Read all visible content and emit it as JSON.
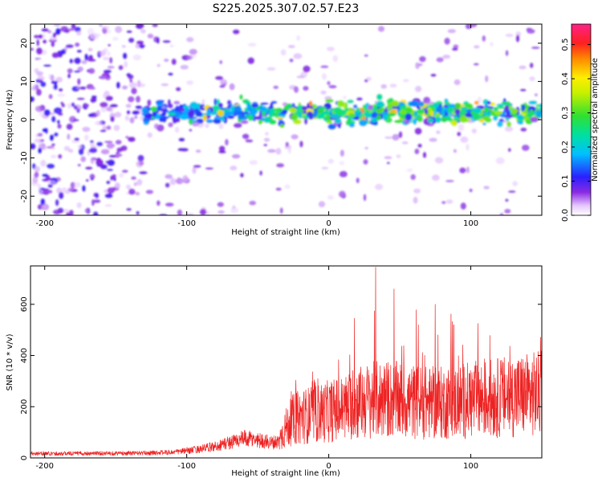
{
  "title": "S225.2025.307.02.57.E23",
  "colors": {
    "snr_line": "#ee2222",
    "axis": "#000000",
    "background": "#ffffff"
  },
  "chart_data": [
    {
      "type": "heatmap",
      "title": "S225.2025.307.02.57.E23",
      "xlabel": "Height of straight line (km)",
      "ylabel": "Frequency (Hz)",
      "xlim": [
        -210,
        150
      ],
      "ylim": [
        -25,
        25
      ],
      "x_ticks": [
        -200,
        -100,
        0,
        100
      ],
      "y_ticks": [
        -20,
        -10,
        0,
        10,
        20
      ],
      "colorbar": {
        "label": "Normalized spectral amplitude",
        "range": [
          0.0,
          0.56
        ],
        "ticks": [
          0.0,
          0.1,
          0.2,
          0.3,
          0.4,
          0.5
        ],
        "colormap": "rainbow (white-violet-blue-cyan-green-yellow-red-magenta)"
      },
      "signal_band": {
        "x_start": -130,
        "x_end": 150,
        "center_freq_hz": 2,
        "halfwidth_hz": 4,
        "peak_amplitude": 0.42
      }
    },
    {
      "type": "line",
      "xlabel": "Height of straight line (km)",
      "ylabel": "SNR (10 * v/v)",
      "xlim": [
        -210,
        150
      ],
      "ylim": [
        0,
        750
      ],
      "x_ticks": [
        -200,
        -100,
        0,
        100
      ],
      "y_ticks": [
        0,
        200,
        400,
        600
      ],
      "series": [
        {
          "name": "SNR",
          "x": [
            -210,
            -190,
            -170,
            -150,
            -130,
            -110,
            -100,
            -90,
            -80,
            -70,
            -60,
            -50,
            -40,
            -35,
            -30,
            -25,
            -20,
            -10,
            0,
            10,
            20,
            30,
            40,
            50,
            60,
            70,
            80,
            90,
            100,
            110,
            120,
            130,
            140,
            150
          ],
          "envelope_mean": [
            18,
            17,
            18,
            18,
            19,
            22,
            28,
            35,
            45,
            60,
            75,
            70,
            60,
            65,
            110,
            140,
            150,
            160,
            170,
            180,
            200,
            210,
            215,
            210,
            205,
            200,
            200,
            205,
            210,
            215,
            220,
            225,
            230,
            235
          ],
          "peaks": [
            {
              "x": 33,
              "y": 745
            },
            {
              "x": 46,
              "y": 660
            },
            {
              "x": 75,
              "y": 600
            },
            {
              "x": 18,
              "y": 545
            },
            {
              "x": 63,
              "y": 520
            },
            {
              "x": 88,
              "y": 520
            },
            {
              "x": 105,
              "y": 525
            }
          ]
        }
      ]
    }
  ]
}
